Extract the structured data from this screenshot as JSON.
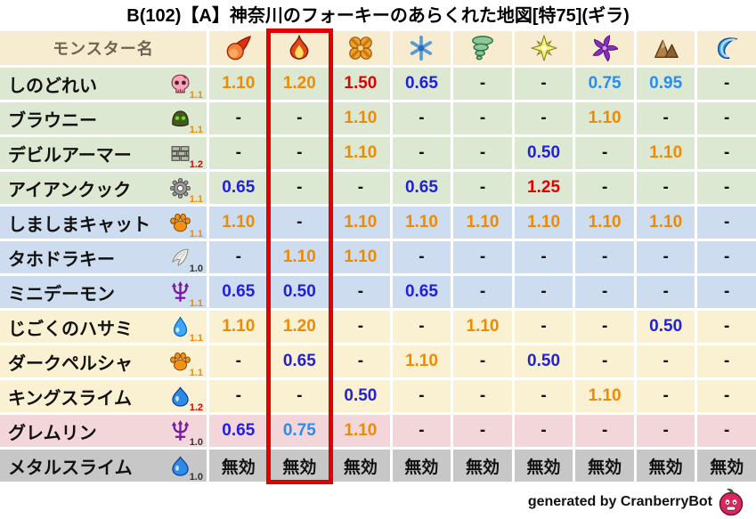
{
  "title": "B(102)【A】神奈川のフォーキーのあらくれた地図[特75](ギラ)",
  "table": {
    "name_header": "モンスター名",
    "elements": [
      {
        "icon": "fireball-icon"
      },
      {
        "icon": "flame-icon"
      },
      {
        "icon": "explosion-icon"
      },
      {
        "icon": "snowflake-icon"
      },
      {
        "icon": "tornado-icon"
      },
      {
        "icon": "starburst-icon"
      },
      {
        "icon": "pinwheel-icon"
      },
      {
        "icon": "mountain-icon"
      },
      {
        "icon": "wave-icon"
      }
    ],
    "monsters": [
      {
        "name": "しのどれい",
        "icon": "skull-icon",
        "multiplier": "1.1",
        "row_color": "green",
        "values": [
          "1.10",
          "1.20",
          "1.50",
          "0.65",
          "-",
          "-",
          "0.75",
          "0.95",
          "-"
        ]
      },
      {
        "name": "ブラウニー",
        "icon": "helmet-icon",
        "multiplier": "1.1",
        "row_color": "green",
        "values": [
          "-",
          "-",
          "1.10",
          "-",
          "-",
          "-",
          "1.10",
          "-",
          "-"
        ]
      },
      {
        "name": "デビルアーマー",
        "icon": "brick-wall-icon",
        "multiplier": "1.2",
        "row_color": "green",
        "values": [
          "-",
          "-",
          "1.10",
          "-",
          "-",
          "0.50",
          "-",
          "1.10",
          "-"
        ]
      },
      {
        "name": "アイアンクック",
        "icon": "gear-icon",
        "multiplier": "1.1",
        "row_color": "green",
        "values": [
          "0.65",
          "-",
          "-",
          "0.65",
          "-",
          "1.25",
          "-",
          "-",
          "-"
        ]
      },
      {
        "name": "しましまキャット",
        "icon": "paw-icon",
        "multiplier": "1.1",
        "row_color": "blue",
        "values": [
          "1.10",
          "-",
          "1.10",
          "1.10",
          "1.10",
          "1.10",
          "1.10",
          "1.10",
          "-"
        ]
      },
      {
        "name": "タホドラキー",
        "icon": "wing-icon",
        "multiplier": "1.0",
        "row_color": "blue",
        "values": [
          "-",
          "1.10",
          "1.10",
          "-",
          "-",
          "-",
          "-",
          "-",
          "-"
        ]
      },
      {
        "name": "ミニデーモン",
        "icon": "trident-icon",
        "multiplier": "1.1",
        "row_color": "blue",
        "values": [
          "0.65",
          "0.50",
          "-",
          "0.65",
          "-",
          "-",
          "-",
          "-",
          "-"
        ]
      },
      {
        "name": "じごくのハサミ",
        "icon": "water-drop-icon",
        "multiplier": "1.1",
        "row_color": "cream",
        "values": [
          "1.10",
          "1.20",
          "-",
          "-",
          "1.10",
          "-",
          "-",
          "0.50",
          "-"
        ]
      },
      {
        "name": "ダークペルシャ",
        "icon": "paw-icon",
        "multiplier": "1.1",
        "row_color": "cream",
        "values": [
          "-",
          "0.65",
          "-",
          "1.10",
          "-",
          "0.50",
          "-",
          "-",
          "-"
        ]
      },
      {
        "name": "キングスライム",
        "icon": "slime-icon",
        "multiplier": "1.2",
        "row_color": "cream",
        "values": [
          "-",
          "-",
          "0.50",
          "-",
          "-",
          "-",
          "1.10",
          "-",
          "-"
        ]
      },
      {
        "name": "グレムリン",
        "icon": "trident-icon",
        "multiplier": "1.0",
        "row_color": "pink",
        "values": [
          "0.65",
          "0.75",
          "1.10",
          "-",
          "-",
          "-",
          "-",
          "-",
          "-"
        ]
      },
      {
        "name": "メタルスライム",
        "icon": "slime-icon",
        "multiplier": "1.0",
        "row_color": "gray",
        "values": [
          "無効",
          "無効",
          "無効",
          "無効",
          "無効",
          "無効",
          "無効",
          "無効",
          "無効"
        ]
      }
    ]
  },
  "highlight": {
    "element_index": 1
  },
  "footer": {
    "credit": "generated by CranberryBot",
    "icon": "cranberry-slime-icon"
  },
  "colors": {
    "highlight_box": "#e00000",
    "header_bg": "#f7ecd0",
    "row_green": "#dce8d2",
    "row_blue": "#cddcee",
    "row_cream": "#faf0d2",
    "row_pink": "#f3d6da",
    "row_gray": "#c7c7c7",
    "val_weak": "#f08a00",
    "val_very_weak": "#e00000",
    "val_resist_light": "#2a8cee",
    "val_resist_strong": "#2020dd",
    "val_neutral": "#111111",
    "mult_up": "#f08a00",
    "mult_up_strong": "#e00000",
    "mult_neutral": "#333333"
  }
}
